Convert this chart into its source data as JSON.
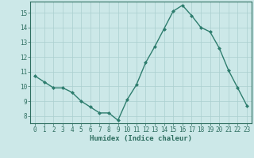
{
  "x": [
    0,
    1,
    2,
    3,
    4,
    5,
    6,
    7,
    8,
    9,
    10,
    11,
    12,
    13,
    14,
    15,
    16,
    17,
    18,
    19,
    20,
    21,
    22,
    23
  ],
  "y": [
    10.7,
    10.3,
    9.9,
    9.9,
    9.6,
    9.0,
    8.6,
    8.2,
    8.2,
    7.7,
    9.1,
    10.1,
    11.6,
    12.7,
    13.9,
    15.1,
    15.5,
    14.8,
    14.0,
    13.7,
    12.6,
    11.1,
    9.9,
    8.7
  ],
  "line_color": "#2e7d6e",
  "marker": "D",
  "marker_size": 2.0,
  "bg_color": "#cce8e8",
  "grid_color": "#aacfcf",
  "xlabel": "Humidex (Indice chaleur)",
  "xlim": [
    -0.5,
    23.5
  ],
  "ylim": [
    7.5,
    15.75
  ],
  "yticks": [
    8,
    9,
    10,
    11,
    12,
    13,
    14,
    15
  ],
  "xticks": [
    0,
    1,
    2,
    3,
    4,
    5,
    6,
    7,
    8,
    9,
    10,
    11,
    12,
    13,
    14,
    15,
    16,
    17,
    18,
    19,
    20,
    21,
    22,
    23
  ],
  "tick_color": "#2e6e60",
  "label_fontsize": 6.5,
  "tick_fontsize": 5.5,
  "linewidth": 1.0
}
